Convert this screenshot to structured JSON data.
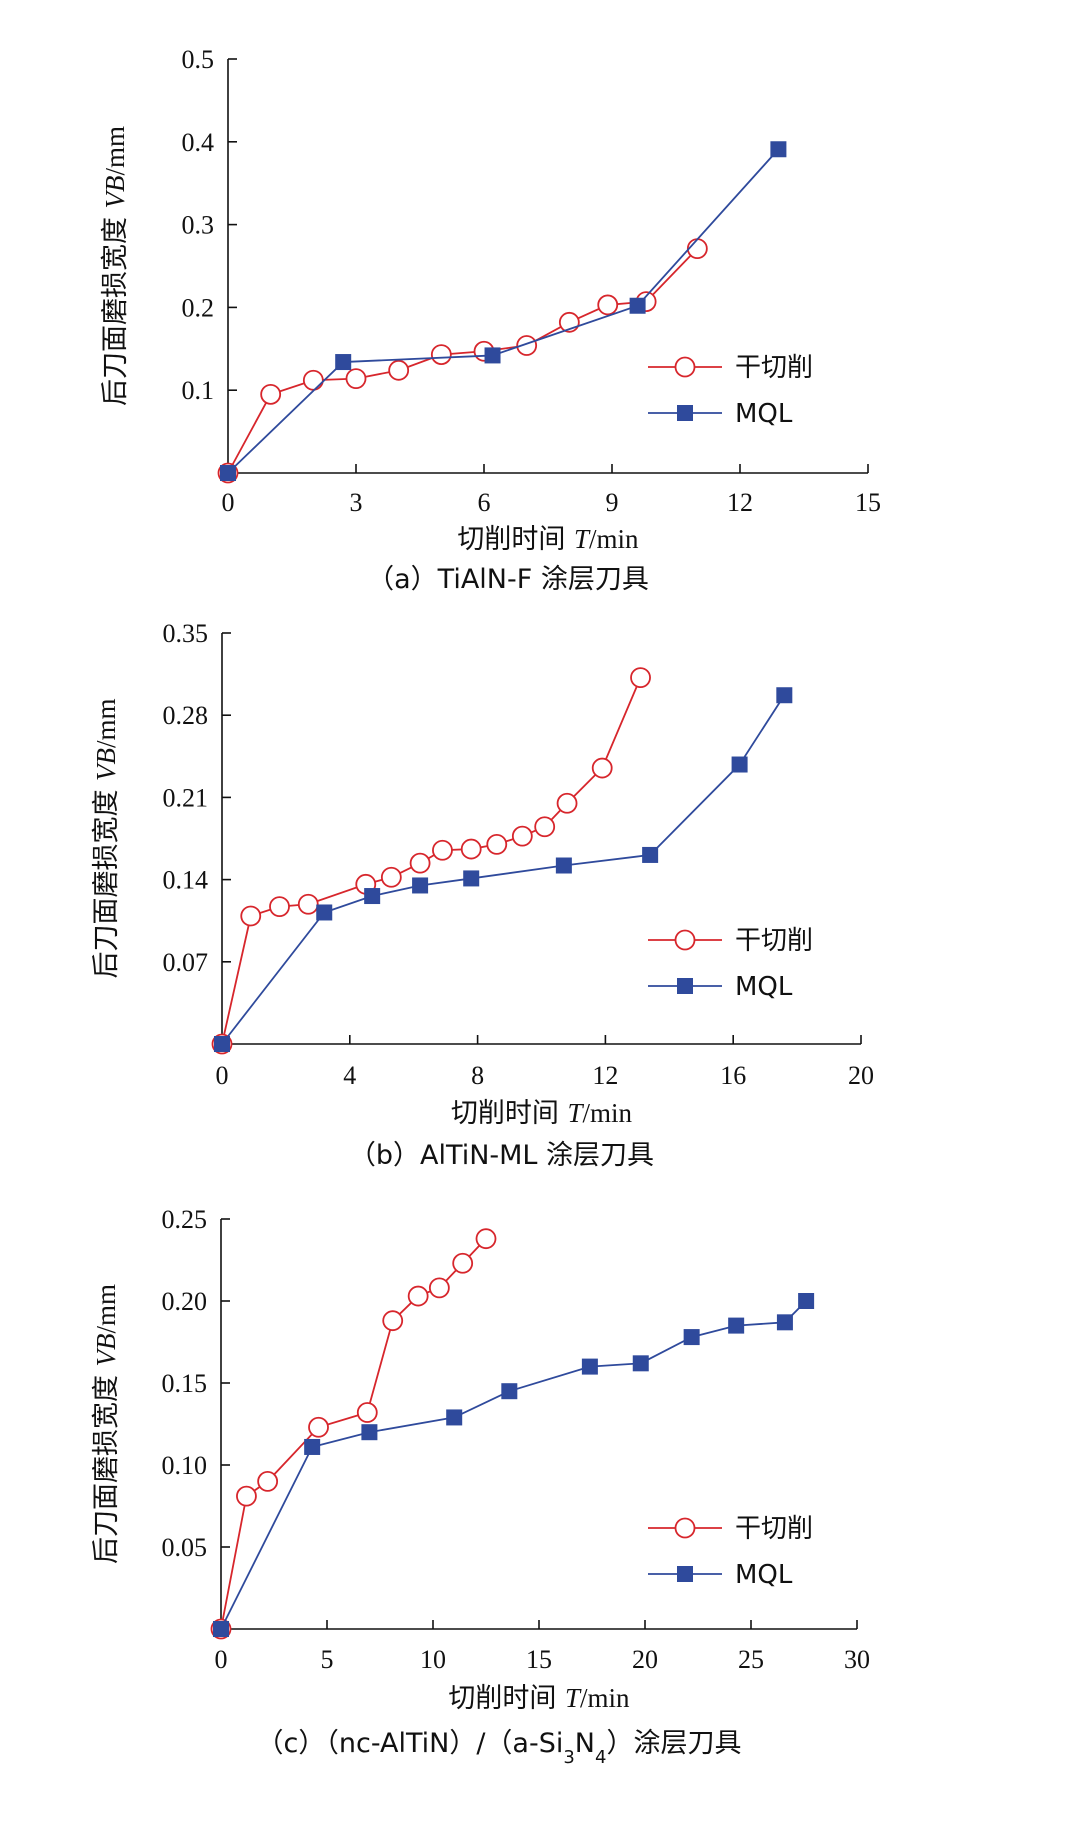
{
  "colors": {
    "dry": "#d7262c",
    "mql": "#2f4a9c"
  },
  "chart_data": [
    {
      "type": "line",
      "caption": "（a）TiAlN-F 涂层刀具",
      "xlabel_plain": "切削时间 ",
      "xlabel_italic": "T",
      "xlabel_unit": "/min",
      "ylabel_plain": "后刀面磨损宽度 ",
      "ylabel_italic": "VB",
      "ylabel_unit": "/mm",
      "xlim": [
        0,
        15
      ],
      "ylim": [
        0,
        0.5
      ],
      "xticks": [
        0,
        3,
        6,
        9,
        12,
        15
      ],
      "yticks": [
        0.1,
        0.2,
        0.3,
        0.4,
        0.5
      ],
      "ytick_labels": [
        "0.1",
        "0.2",
        "0.3",
        "0.4",
        "0.5"
      ],
      "legend_position": "right",
      "series": [
        {
          "name": "干切削",
          "marker": "open-circle",
          "x": [
            0,
            1,
            2,
            3,
            4,
            5,
            6,
            7,
            8,
            8.9,
            9.8,
            11
          ],
          "y": [
            0.0,
            0.095,
            0.112,
            0.114,
            0.124,
            0.143,
            0.147,
            0.154,
            0.182,
            0.203,
            0.207,
            0.271
          ]
        },
        {
          "name": "MQL",
          "marker": "filled-square",
          "x": [
            0,
            2.7,
            6.2,
            9.6,
            12.9
          ],
          "y": [
            0.0,
            0.134,
            0.142,
            0.202,
            0.391
          ]
        }
      ]
    },
    {
      "type": "line",
      "caption": "（b）AlTiN-ML 涂层刀具",
      "xlabel_plain": "切削时间 ",
      "xlabel_italic": "T",
      "xlabel_unit": "/min",
      "ylabel_plain": "后刀面磨损宽度 ",
      "ylabel_italic": "VB",
      "ylabel_unit": "/mm",
      "xlim": [
        0,
        20
      ],
      "ylim": [
        0,
        0.35
      ],
      "xticks": [
        0,
        4,
        8,
        12,
        16,
        20
      ],
      "yticks": [
        0.07,
        0.14,
        0.21,
        0.28,
        0.35
      ],
      "ytick_labels": [
        "0.07",
        "0.14",
        "0.21",
        "0.28",
        "0.35"
      ],
      "legend_position": "right",
      "series": [
        {
          "name": "干切削",
          "marker": "open-circle",
          "x": [
            0,
            0.9,
            1.8,
            2.7,
            4.5,
            5.3,
            6.2,
            6.9,
            7.8,
            8.6,
            9.4,
            10.1,
            10.8,
            11.9,
            13.1
          ],
          "y": [
            0.0,
            0.109,
            0.117,
            0.119,
            0.136,
            0.142,
            0.154,
            0.165,
            0.166,
            0.17,
            0.177,
            0.185,
            0.205,
            0.235,
            0.312
          ]
        },
        {
          "name": "MQL",
          "marker": "filled-square",
          "x": [
            0,
            3.2,
            4.7,
            6.2,
            7.8,
            10.7,
            13.4,
            16.2,
            17.6
          ],
          "y": [
            0.0,
            0.112,
            0.126,
            0.135,
            0.141,
            0.152,
            0.161,
            0.238,
            0.297
          ]
        }
      ]
    },
    {
      "type": "line",
      "caption_parts": [
        "（c）（nc-AlTiN）/（a-Si",
        "3",
        "N",
        "4",
        "）涂层刀具"
      ],
      "xlabel_plain": "切削时间 ",
      "xlabel_italic": "T",
      "xlabel_unit": "/min",
      "ylabel_plain": "后刀面磨损宽度 ",
      "ylabel_italic": "VB",
      "ylabel_unit": "/mm",
      "xlim": [
        0,
        30
      ],
      "ylim": [
        0,
        0.25
      ],
      "xticks": [
        0,
        5,
        10,
        15,
        20,
        25,
        30
      ],
      "yticks": [
        0.05,
        0.1,
        0.15,
        0.2,
        0.25
      ],
      "ytick_labels": [
        "0.05",
        "0.10",
        "0.15",
        "0.20",
        "0.25"
      ],
      "legend_position": "right",
      "series": [
        {
          "name": "干切削",
          "marker": "open-circle",
          "x": [
            0,
            1.2,
            2.2,
            4.6,
            6.9,
            8.1,
            9.3,
            10.3,
            11.4,
            12.5
          ],
          "y": [
            0.0,
            0.081,
            0.09,
            0.123,
            0.132,
            0.188,
            0.203,
            0.208,
            0.223,
            0.238
          ]
        },
        {
          "name": "MQL",
          "marker": "filled-square",
          "x": [
            0,
            4.3,
            7.0,
            11.0,
            13.6,
            17.4,
            19.8,
            22.2,
            24.3,
            26.6,
            27.6
          ],
          "y": [
            0.0,
            0.111,
            0.12,
            0.129,
            0.145,
            0.16,
            0.162,
            0.178,
            0.185,
            0.187,
            0.2
          ]
        }
      ]
    }
  ]
}
